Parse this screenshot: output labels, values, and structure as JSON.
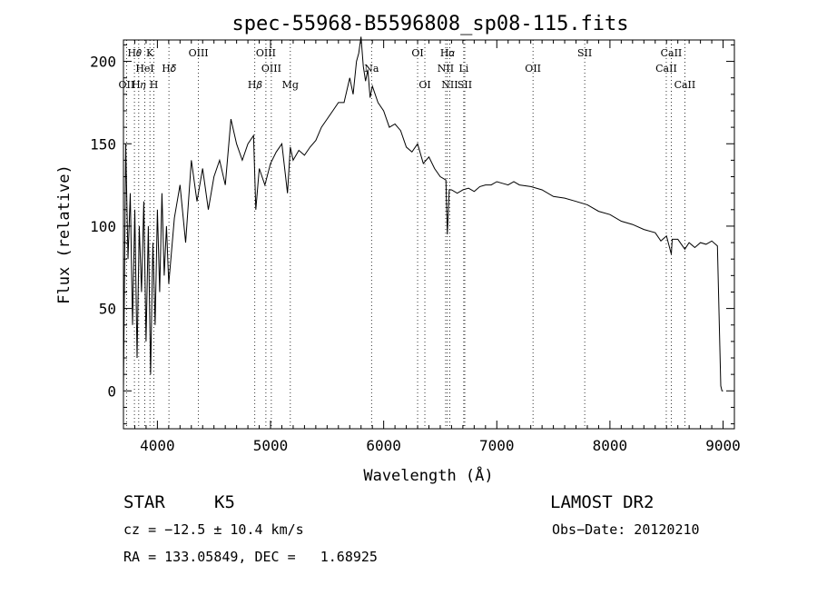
{
  "chart_data": {
    "type": "line",
    "title": "spec-55968-B5596808_sp08-115.fits",
    "xlabel": "Wavelength (Å)",
    "ylabel": "Flux (relative)",
    "xlim": [
      3700,
      9100
    ],
    "ylim": [
      -23,
      213
    ],
    "xticks": [
      "4000",
      "5000",
      "6000",
      "7000",
      "8000",
      "9000"
    ],
    "yticks": [
      "0",
      "50",
      "100",
      "150",
      "200"
    ],
    "grid": false,
    "series": [
      {
        "x": [
          3700,
          3720,
          3740,
          3760,
          3780,
          3800,
          3820,
          3840,
          3860,
          3880,
          3900,
          3920,
          3940,
          3960,
          3980,
          4000,
          4020,
          4040,
          4060,
          4080,
          4100,
          4150,
          4200,
          4250,
          4300,
          4350,
          4400,
          4450,
          4500,
          4550,
          4600,
          4650,
          4700,
          4750,
          4800,
          4850,
          4870,
          4900,
          4950,
          5000,
          5050,
          5100,
          5150,
          5175,
          5200,
          5250,
          5300,
          5350,
          5400,
          5450,
          5500,
          5550,
          5600,
          5650,
          5700,
          5730,
          5760,
          5780,
          5800,
          5820,
          5840,
          5860,
          5880,
          5900,
          5950,
          6000,
          6050,
          6100,
          6150,
          6200,
          6250,
          6300,
          6350,
          6400,
          6450,
          6500,
          6550,
          6563,
          6580,
          6600,
          6650,
          6700,
          6750,
          6800,
          6850,
          6900,
          6950,
          7000,
          7050,
          7100,
          7150,
          7200,
          7300,
          7400,
          7500,
          7600,
          7700,
          7800,
          7900,
          8000,
          8100,
          8200,
          8300,
          8400,
          8450,
          8500,
          8542,
          8550,
          8600,
          8662,
          8700,
          8750,
          8800,
          8850,
          8900,
          8950,
          8980,
          8990,
          9000
        ],
        "values": [
          0,
          150,
          80,
          120,
          40,
          110,
          20,
          100,
          60,
          115,
          30,
          100,
          10,
          90,
          40,
          110,
          60,
          120,
          70,
          100,
          65,
          105,
          125,
          90,
          140,
          115,
          135,
          110,
          130,
          140,
          125,
          165,
          150,
          140,
          150,
          155,
          110,
          135,
          125,
          138,
          145,
          150,
          120,
          148,
          140,
          146,
          143,
          148,
          152,
          160,
          165,
          170,
          175,
          175,
          190,
          180,
          200,
          205,
          215,
          197,
          188,
          195,
          178,
          185,
          175,
          170,
          160,
          162,
          158,
          148,
          145,
          150,
          138,
          142,
          135,
          130,
          128,
          95,
          122,
          122,
          120,
          122,
          123,
          121,
          124,
          125,
          125,
          127,
          126,
          125,
          127,
          125,
          124,
          122,
          118,
          117,
          115,
          113,
          109,
          107,
          103,
          101,
          98,
          96,
          91,
          94,
          83,
          92,
          92,
          86,
          90,
          87,
          90,
          89,
          91,
          88,
          3,
          0,
          0
        ]
      }
    ],
    "line_labels": [
      {
        "text": "H𝜃",
        "x": 3797,
        "row": 1
      },
      {
        "text": "K",
        "x": 3934,
        "row": 1
      },
      {
        "text": "HeI",
        "x": 3889,
        "row": 2
      },
      {
        "text": "H𝛿",
        "x": 4102,
        "row": 2
      },
      {
        "text": "OIII",
        "x": 4363,
        "row": 1
      },
      {
        "text": "OII",
        "x": 3727,
        "row": 3
      },
      {
        "text": "H𝜂",
        "x": 3835,
        "row": 3
      },
      {
        "text": "H",
        "x": 3969,
        "row": 3
      },
      {
        "text": "OIII",
        "x": 4959,
        "row": 1
      },
      {
        "text": "OIII",
        "x": 5007,
        "row": 2
      },
      {
        "text": "H𝛽",
        "x": 4861,
        "row": 3
      },
      {
        "text": "Mg",
        "x": 5175,
        "row": 3
      },
      {
        "text": "Na",
        "x": 5893,
        "row": 2
      },
      {
        "text": "OI",
        "x": 6300,
        "row": 1
      },
      {
        "text": "OI",
        "x": 6364,
        "row": 3
      },
      {
        "text": "H𝛼",
        "x": 6563,
        "row": 1
      },
      {
        "text": "NII",
        "x": 6548,
        "row": 2
      },
      {
        "text": "Li",
        "x": 6708,
        "row": 2
      },
      {
        "text": "NII",
        "x": 6584,
        "row": 3
      },
      {
        "text": "SII",
        "x": 6717,
        "row": 3
      },
      {
        "text": "OII",
        "x": 7320,
        "row": 2
      },
      {
        "text": "SII",
        "x": 7777,
        "row": 1
      },
      {
        "text": "CaII",
        "x": 8542,
        "row": 1
      },
      {
        "text": "CaII",
        "x": 8498,
        "row": 2
      },
      {
        "text": "CaII",
        "x": 8662,
        "row": 3
      }
    ],
    "marker_lines": [
      3727,
      3797,
      3835,
      3889,
      3934,
      3969,
      4102,
      4363,
      4861,
      4959,
      5007,
      5175,
      5893,
      6300,
      6364,
      6548,
      6563,
      6584,
      6708,
      6717,
      7320,
      7777,
      8498,
      8542,
      8662
    ]
  },
  "info": {
    "object_class": "STAR",
    "subclass": "K5",
    "survey": "LAMOST DR2",
    "cz": "cz = −12.5 ± 10.4 km/s",
    "obs_date": "Obs−Date: 20120210",
    "coords": "RA = 133.05849, DEC =   1.68925"
  }
}
